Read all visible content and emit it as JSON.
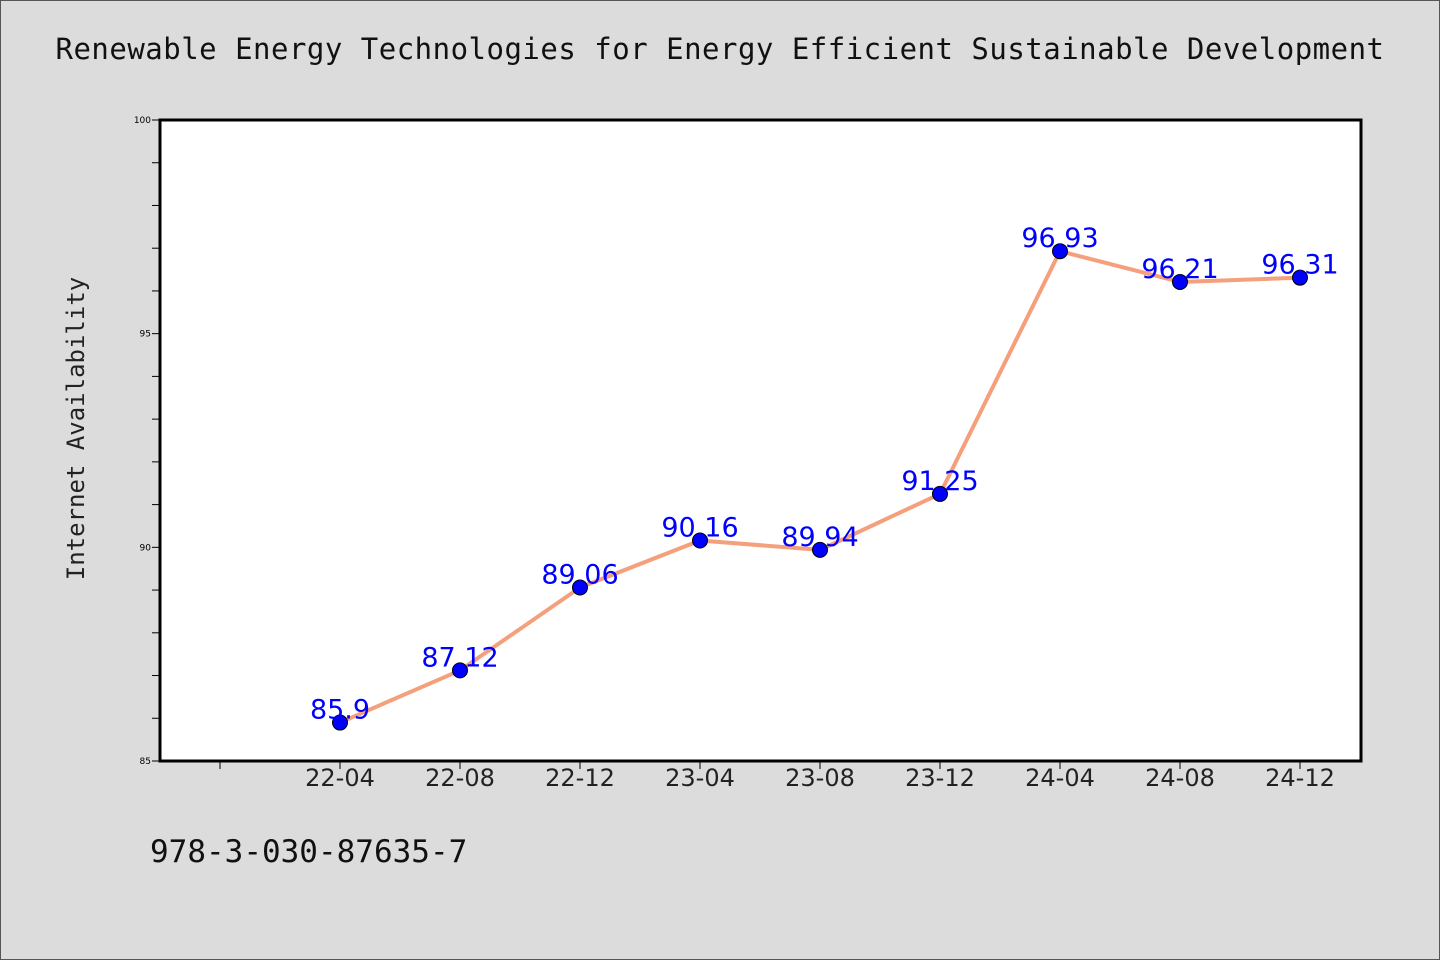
{
  "title": "Renewable Energy Technologies for Energy Efficient Sustainable Development",
  "footer_note": "978-3-030-87635-7",
  "colors": {
    "background": "#dcdcdc",
    "plot_background": "#ffffff",
    "line": "#f4a07c",
    "marker": "#0000ff",
    "data_label": "#0000ff",
    "axis": "#000000"
  },
  "chart_data": {
    "type": "line",
    "title": "Renewable Energy Technologies for Energy Efficient Sustainable Development",
    "xlabel": "",
    "ylabel": "Internet Availability",
    "categories": [
      "22-04",
      "22-08",
      "22-12",
      "23-04",
      "23-08",
      "23-12",
      "24-04",
      "24-08",
      "24-12"
    ],
    "series": [
      {
        "values": [
          85.9,
          87.12,
          89.06,
          90.16,
          89.94,
          91.25,
          96.93,
          96.21,
          96.31
        ],
        "labels": [
          "85.9",
          "87.12",
          "89.06",
          "90.16",
          "89.94",
          "91.25",
          "96.93",
          "96.21",
          "96.31"
        ]
      }
    ],
    "ylim": [
      85,
      100
    ],
    "yticks": [
      85,
      90,
      95,
      100
    ],
    "y_minor_step": 1,
    "grid": false,
    "legend": "none",
    "markers": "circle",
    "data_labels": true
  }
}
